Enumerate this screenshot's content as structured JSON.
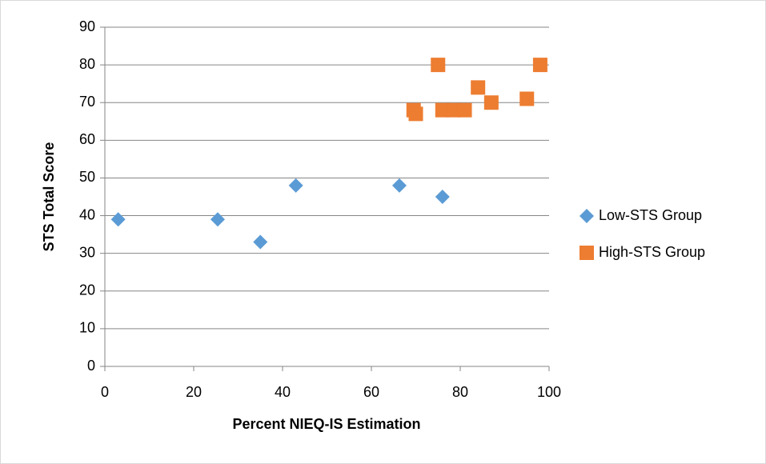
{
  "chart_data": {
    "type": "scatter",
    "x_label": "Percent NIEQ-IS Estimation",
    "y_label": "STS Total Score",
    "xlim": [
      0,
      100
    ],
    "xticks": [
      0,
      20,
      40,
      60,
      80,
      100
    ],
    "ylim": [
      0,
      90
    ],
    "yticks": [
      0,
      10,
      20,
      30,
      40,
      50,
      60,
      70,
      80,
      90
    ],
    "grid": true,
    "legend": "right",
    "series": [
      {
        "name": "Low-STS Group",
        "color": "#5b9bd5",
        "marker": "diamond",
        "x": [
          3,
          25.4,
          35,
          43,
          66.3,
          76
        ],
        "values": [
          39,
          39,
          33,
          48,
          48,
          45
        ]
      },
      {
        "name": "High-STS Group",
        "color": "#ed7d31",
        "marker": "square",
        "x": [
          69.5,
          70,
          75,
          76,
          78.5,
          81,
          84,
          87,
          95,
          98
        ],
        "values": [
          68,
          67,
          80,
          68,
          68,
          68,
          74,
          70,
          71,
          80
        ]
      }
    ]
  }
}
